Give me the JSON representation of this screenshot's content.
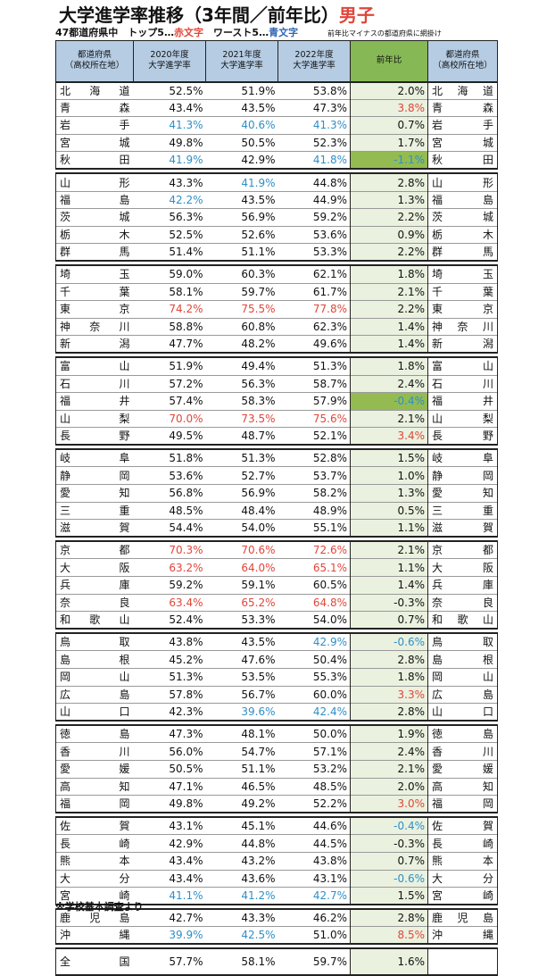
{
  "title_main": "大学進学率推移（3年間／前年比）",
  "title_accent": "男子",
  "legend": {
    "prefix": "47都道府県中　トップ5…",
    "top_label": "赤文字",
    "sep": "　ワースト5…",
    "worst_label": "青文字",
    "note": "前年比マイナスの都道府県に網掛け"
  },
  "headers": {
    "pref": "都道府県\n（高校所在地）",
    "y2020": "2020年度\n大学進学率",
    "y2021": "2021年度\n大学進学率",
    "y2022": "2022年度\n大学進学率",
    "yoy": "前年比",
    "pref2": "都道府県\n（高校所在地）"
  },
  "colors": {
    "top": "#e0463a",
    "worst": "#2f8fc6",
    "header_bg": "#b5cce3",
    "yoy_header_bg": "#86b855",
    "yoy_bg": "#eaf1df",
    "yoy_negative_bg": "#93bb52"
  },
  "groups": [
    [
      {
        "pref": "北海道",
        "v2020": "52.5%",
        "v2021": "51.9%",
        "v2022": "53.8%",
        "yoy": "2.0%"
      },
      {
        "pref": "青森",
        "v2020": "43.4%",
        "v2021": "43.5%",
        "v2022": "47.3%",
        "yoy": "3.8%",
        "h_yoy": "top"
      },
      {
        "pref": "岩手",
        "v2020": "41.3%",
        "v2021": "40.6%",
        "v2022": "41.3%",
        "yoy": "0.7%",
        "h2020": "worst",
        "h2021": "worst",
        "h2022": "worst"
      },
      {
        "pref": "宮城",
        "v2020": "49.8%",
        "v2021": "50.5%",
        "v2022": "52.3%",
        "yoy": "1.7%"
      },
      {
        "pref": "秋田",
        "v2020": "41.9%",
        "v2021": "42.9%",
        "v2022": "41.8%",
        "yoy": "-1.1%",
        "h2020": "worst",
        "h2022": "worst",
        "h_yoy": "worst",
        "neg": true
      }
    ],
    [
      {
        "pref": "山形",
        "v2020": "43.3%",
        "v2021": "41.9%",
        "v2022": "44.8%",
        "yoy": "2.8%",
        "h2021": "worst"
      },
      {
        "pref": "福島",
        "v2020": "42.2%",
        "v2021": "43.5%",
        "v2022": "44.9%",
        "yoy": "1.3%",
        "h2020": "worst"
      },
      {
        "pref": "茨城",
        "v2020": "56.3%",
        "v2021": "56.9%",
        "v2022": "59.2%",
        "yoy": "2.2%"
      },
      {
        "pref": "栃木",
        "v2020": "52.5%",
        "v2021": "52.6%",
        "v2022": "53.6%",
        "yoy": "0.9%"
      },
      {
        "pref": "群馬",
        "v2020": "51.4%",
        "v2021": "51.1%",
        "v2022": "53.3%",
        "yoy": "2.2%"
      }
    ],
    [
      {
        "pref": "埼玉",
        "v2020": "59.0%",
        "v2021": "60.3%",
        "v2022": "62.1%",
        "yoy": "1.8%"
      },
      {
        "pref": "千葉",
        "v2020": "58.1%",
        "v2021": "59.7%",
        "v2022": "61.7%",
        "yoy": "2.1%"
      },
      {
        "pref": "東京",
        "v2020": "74.2%",
        "v2021": "75.5%",
        "v2022": "77.8%",
        "yoy": "2.2%",
        "h2020": "top",
        "h2021": "top",
        "h2022": "top"
      },
      {
        "pref": "神奈川",
        "v2020": "58.8%",
        "v2021": "60.8%",
        "v2022": "62.3%",
        "yoy": "1.4%"
      },
      {
        "pref": "新潟",
        "v2020": "47.7%",
        "v2021": "48.2%",
        "v2022": "49.6%",
        "yoy": "1.4%"
      }
    ],
    [
      {
        "pref": "富山",
        "v2020": "51.9%",
        "v2021": "49.4%",
        "v2022": "51.3%",
        "yoy": "1.8%"
      },
      {
        "pref": "石川",
        "v2020": "57.2%",
        "v2021": "56.3%",
        "v2022": "58.7%",
        "yoy": "2.4%"
      },
      {
        "pref": "福井",
        "v2020": "57.4%",
        "v2021": "58.3%",
        "v2022": "57.9%",
        "yoy": "-0.4%",
        "h_yoy": "worst",
        "neg": true
      },
      {
        "pref": "山梨",
        "v2020": "70.0%",
        "v2021": "73.5%",
        "v2022": "75.6%",
        "yoy": "2.1%",
        "h2020": "top",
        "h2021": "top",
        "h2022": "top"
      },
      {
        "pref": "長野",
        "v2020": "49.5%",
        "v2021": "48.7%",
        "v2022": "52.1%",
        "yoy": "3.4%",
        "h_yoy": "top"
      }
    ],
    [
      {
        "pref": "岐阜",
        "v2020": "51.8%",
        "v2021": "51.3%",
        "v2022": "52.8%",
        "yoy": "1.5%"
      },
      {
        "pref": "静岡",
        "v2020": "53.6%",
        "v2021": "52.7%",
        "v2022": "53.7%",
        "yoy": "1.0%"
      },
      {
        "pref": "愛知",
        "v2020": "56.8%",
        "v2021": "56.9%",
        "v2022": "58.2%",
        "yoy": "1.3%"
      },
      {
        "pref": "三重",
        "v2020": "48.5%",
        "v2021": "48.4%",
        "v2022": "48.9%",
        "yoy": "0.5%"
      },
      {
        "pref": "滋賀",
        "v2020": "54.4%",
        "v2021": "54.0%",
        "v2022": "55.1%",
        "yoy": "1.1%"
      }
    ],
    [
      {
        "pref": "京都",
        "v2020": "70.3%",
        "v2021": "70.6%",
        "v2022": "72.6%",
        "yoy": "2.1%",
        "h2020": "top",
        "h2021": "top",
        "h2022": "top"
      },
      {
        "pref": "大阪",
        "v2020": "63.2%",
        "v2021": "64.0%",
        "v2022": "65.1%",
        "yoy": "1.1%",
        "h2020": "top",
        "h2021": "top",
        "h2022": "top"
      },
      {
        "pref": "兵庫",
        "v2020": "59.2%",
        "v2021": "59.1%",
        "v2022": "60.5%",
        "yoy": "1.4%"
      },
      {
        "pref": "奈良",
        "v2020": "63.4%",
        "v2021": "65.2%",
        "v2022": "64.8%",
        "yoy": "-0.3%",
        "h2020": "top",
        "h2021": "top",
        "h2022": "top"
      },
      {
        "pref": "和歌山",
        "v2020": "52.4%",
        "v2021": "53.3%",
        "v2022": "54.0%",
        "yoy": "0.7%"
      }
    ],
    [
      {
        "pref": "鳥取",
        "v2020": "43.8%",
        "v2021": "43.5%",
        "v2022": "42.9%",
        "yoy": "-0.6%",
        "h2022": "worst",
        "h_yoy": "worst"
      },
      {
        "pref": "島根",
        "v2020": "45.2%",
        "v2021": "47.6%",
        "v2022": "50.4%",
        "yoy": "2.8%"
      },
      {
        "pref": "岡山",
        "v2020": "51.3%",
        "v2021": "53.5%",
        "v2022": "55.3%",
        "yoy": "1.8%"
      },
      {
        "pref": "広島",
        "v2020": "57.8%",
        "v2021": "56.7%",
        "v2022": "60.0%",
        "yoy": "3.3%",
        "h_yoy": "top"
      },
      {
        "pref": "山口",
        "v2020": "42.3%",
        "v2021": "39.6%",
        "v2022": "42.4%",
        "yoy": "2.8%",
        "h2021": "worst",
        "h2022": "worst"
      }
    ],
    [
      {
        "pref": "徳島",
        "v2020": "47.3%",
        "v2021": "48.1%",
        "v2022": "50.0%",
        "yoy": "1.9%"
      },
      {
        "pref": "香川",
        "v2020": "56.0%",
        "v2021": "54.7%",
        "v2022": "57.1%",
        "yoy": "2.4%"
      },
      {
        "pref": "愛媛",
        "v2020": "50.5%",
        "v2021": "51.1%",
        "v2022": "53.2%",
        "yoy": "2.1%"
      },
      {
        "pref": "高知",
        "v2020": "47.1%",
        "v2021": "46.5%",
        "v2022": "48.5%",
        "yoy": "2.0%"
      },
      {
        "pref": "福岡",
        "v2020": "49.8%",
        "v2021": "49.2%",
        "v2022": "52.2%",
        "yoy": "3.0%",
        "h_yoy": "top"
      }
    ],
    [
      {
        "pref": "佐賀",
        "v2020": "43.1%",
        "v2021": "45.1%",
        "v2022": "44.6%",
        "yoy": "-0.4%",
        "h_yoy": "worst"
      },
      {
        "pref": "長崎",
        "v2020": "42.9%",
        "v2021": "44.8%",
        "v2022": "44.5%",
        "yoy": "-0.3%"
      },
      {
        "pref": "熊本",
        "v2020": "43.4%",
        "v2021": "43.2%",
        "v2022": "43.8%",
        "yoy": "0.7%"
      },
      {
        "pref": "大分",
        "v2020": "43.4%",
        "v2021": "43.6%",
        "v2022": "43.1%",
        "yoy": "-0.6%",
        "h_yoy": "worst"
      },
      {
        "pref": "宮崎",
        "v2020": "41.1%",
        "v2021": "41.2%",
        "v2022": "42.7%",
        "yoy": "1.5%",
        "h2020": "worst",
        "h2021": "worst",
        "h2022": "worst"
      }
    ],
    [
      {
        "pref": "鹿児島",
        "v2020": "42.7%",
        "v2021": "43.3%",
        "v2022": "46.2%",
        "yoy": "2.8%"
      },
      {
        "pref": "沖縄",
        "v2020": "39.9%",
        "v2021": "42.5%",
        "v2022": "51.0%",
        "yoy": "8.5%",
        "h2020": "worst",
        "h2021": "worst",
        "h_yoy": "top"
      }
    ]
  ],
  "total": {
    "pref": "全国",
    "v2020": "57.7%",
    "v2021": "58.1%",
    "v2022": "59.7%",
    "yoy": "1.6%"
  },
  "source": "※学校基本調査より"
}
